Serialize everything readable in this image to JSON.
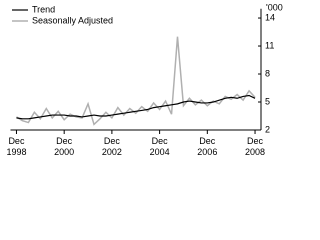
{
  "chart_data": {
    "type": "line",
    "y_unit": "'000",
    "x": [
      "1998-12",
      "1999-03",
      "1999-06",
      "1999-09",
      "1999-12",
      "2000-03",
      "2000-06",
      "2000-09",
      "2000-12",
      "2001-03",
      "2001-06",
      "2001-09",
      "2001-12",
      "2002-03",
      "2002-06",
      "2002-09",
      "2002-12",
      "2003-03",
      "2003-06",
      "2003-09",
      "2003-12",
      "2004-03",
      "2004-06",
      "2004-09",
      "2004-12",
      "2005-03",
      "2005-06",
      "2005-09",
      "2005-12",
      "2006-03",
      "2006-06",
      "2006-09",
      "2006-12",
      "2007-03",
      "2007-06",
      "2007-09",
      "2007-12",
      "2008-03",
      "2008-06",
      "2008-09",
      "2008-12"
    ],
    "series": [
      {
        "name": "Trend",
        "color": "#000000",
        "width": 1.2,
        "values": [
          3.3,
          3.2,
          3.2,
          3.3,
          3.4,
          3.5,
          3.6,
          3.6,
          3.6,
          3.5,
          3.5,
          3.4,
          3.5,
          3.6,
          3.5,
          3.5,
          3.6,
          3.7,
          3.8,
          3.9,
          4.0,
          4.1,
          4.2,
          4.4,
          4.5,
          4.6,
          4.7,
          4.8,
          5.0,
          5.1,
          5.0,
          4.9,
          4.9,
          5.0,
          5.2,
          5.4,
          5.5,
          5.4,
          5.6,
          5.7,
          5.4
        ]
      },
      {
        "name": "Seasonally Adjusted",
        "color": "#b0b0b0",
        "width": 1.5,
        "values": [
          3.4,
          3.0,
          2.8,
          3.9,
          3.2,
          4.3,
          3.3,
          4.0,
          3.1,
          3.7,
          3.4,
          3.3,
          4.8,
          2.6,
          3.2,
          3.9,
          3.3,
          4.4,
          3.6,
          4.3,
          3.8,
          4.5,
          4.0,
          4.9,
          4.2,
          5.1,
          3.7,
          12.0,
          4.6,
          5.4,
          4.7,
          5.2,
          4.6,
          5.1,
          4.8,
          5.6,
          5.3,
          5.8,
          5.2,
          6.2,
          5.5
        ]
      }
    ],
    "xlim": [
      "1998-09",
      "2009-03"
    ],
    "xticks": [
      {
        "value": "1998-12",
        "label": "Dec\n1998"
      },
      {
        "value": "2000-12",
        "label": "Dec\n2000"
      },
      {
        "value": "2002-12",
        "label": "Dec\n2002"
      },
      {
        "value": "2004-12",
        "label": "Dec\n2004"
      },
      {
        "value": "2006-12",
        "label": "Dec\n2006"
      },
      {
        "value": "2008-12",
        "label": "Dec\n2008"
      }
    ],
    "ylim": [
      2,
      15
    ],
    "yticks": [
      2,
      5,
      8,
      11,
      14
    ]
  }
}
